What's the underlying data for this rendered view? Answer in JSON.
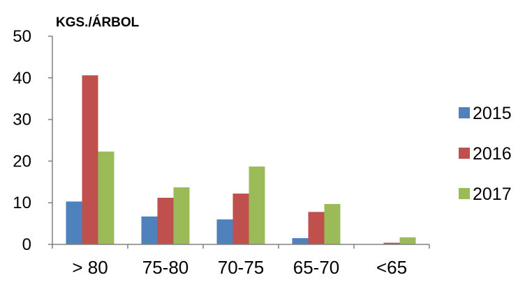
{
  "chart_data": {
    "type": "bar",
    "title": "",
    "xlabel": "",
    "ylabel": "KGS./ÁRBOL",
    "categories": [
      "> 80",
      "75-80",
      "70-75",
      "65-70",
      "<65"
    ],
    "series": [
      {
        "name": "2015",
        "color": "#4f81bd",
        "values": [
          10.3,
          6.7,
          6.0,
          1.5,
          0.0
        ]
      },
      {
        "name": "2016",
        "color": "#c0504d",
        "values": [
          40.6,
          11.2,
          12.2,
          7.8,
          0.4
        ]
      },
      {
        "name": "2017",
        "color": "#9bbb59",
        "values": [
          22.3,
          13.7,
          18.7,
          9.7,
          1.7
        ]
      }
    ],
    "ylim": [
      0,
      50
    ],
    "yticks": [
      0,
      10,
      20,
      30,
      40,
      50
    ],
    "grid": false,
    "legend_position": "right"
  }
}
